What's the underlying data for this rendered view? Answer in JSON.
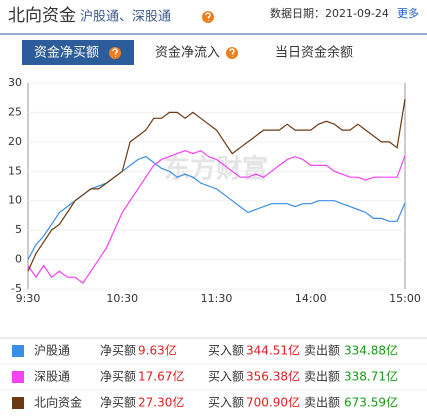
{
  "header": {
    "title": "北向资金",
    "subtitle": "沪股通、深股通",
    "date": "数据日期：2021-09-24",
    "more": "更多"
  },
  "tabs": [
    "资金净买额",
    "资金净流入",
    "当日资金余额"
  ],
  "chart_data": {
    "type": "line",
    "watermark": "东方财富",
    "categories": [
      "9:30",
      null,
      null,
      null,
      null,
      null,
      null,
      null,
      null,
      null,
      null,
      null,
      "10:30",
      null,
      null,
      null,
      null,
      null,
      null,
      null,
      null,
      null,
      null,
      null,
      "11:30",
      null,
      null,
      null,
      null,
      null,
      null,
      null,
      null,
      null,
      null,
      null,
      "14:00",
      null,
      null,
      null,
      null,
      null,
      null,
      null,
      null,
      null,
      null,
      null,
      "15:00"
    ],
    "series": [
      {
        "name": "沪股通",
        "color": "#3a8ee6",
        "values": [
          0,
          2.5,
          4,
          6,
          8,
          9,
          10,
          11,
          12,
          12.5,
          13,
          14,
          15,
          16,
          17,
          17.5,
          16.5,
          15.5,
          15,
          14,
          14.5,
          14,
          13,
          12.5,
          12,
          11,
          10,
          9,
          8,
          8.5,
          9,
          9.5,
          9.5,
          9.5,
          9,
          9.5,
          9.5,
          10,
          10,
          10,
          9.5,
          9,
          8.5,
          8,
          7,
          7,
          6.5,
          6.5,
          9.63
        ]
      },
      {
        "name": "深股通",
        "color": "#f542f5",
        "values": [
          -1,
          -3,
          -1,
          -3,
          -2,
          -3,
          -3,
          -4,
          -2,
          0,
          2,
          5,
          8,
          10,
          12,
          14,
          16,
          17,
          17.5,
          18,
          18.5,
          18,
          18.5,
          17.5,
          17,
          16,
          15,
          14,
          14,
          14.5,
          14,
          15,
          16,
          17,
          17.5,
          17,
          16,
          16,
          16,
          15,
          14.5,
          14,
          14,
          13.5,
          14,
          14,
          14,
          14,
          17.67
        ]
      },
      {
        "name": "北向资金",
        "color": "#6b3a12",
        "values": [
          -2,
          1,
          3,
          5,
          6,
          8,
          10,
          11,
          12,
          12,
          13,
          14,
          15,
          20,
          21,
          22,
          24,
          24,
          25,
          25,
          24,
          25,
          24,
          23,
          22,
          20,
          18,
          19,
          20,
          21,
          22,
          22,
          22,
          23,
          22,
          22,
          22,
          23,
          23.5,
          23,
          22,
          22,
          23,
          22,
          21,
          20,
          20,
          19,
          27.3
        ]
      }
    ],
    "ylim": [
      -5,
      30
    ],
    "yticks": [
      -5,
      0,
      5,
      10,
      15,
      20,
      25,
      30
    ],
    "grid": true
  },
  "table": {
    "labels": [
      "净买额",
      "买入额",
      "卖出额"
    ],
    "rows": [
      {
        "net": "9.63亿",
        "buy": "344.51亿",
        "sell": "334.88亿"
      },
      {
        "net": "17.67亿",
        "buy": "356.38亿",
        "sell": "338.71亿"
      },
      {
        "net": "27.30亿",
        "buy": "700.90亿",
        "sell": "673.59亿"
      }
    ]
  }
}
